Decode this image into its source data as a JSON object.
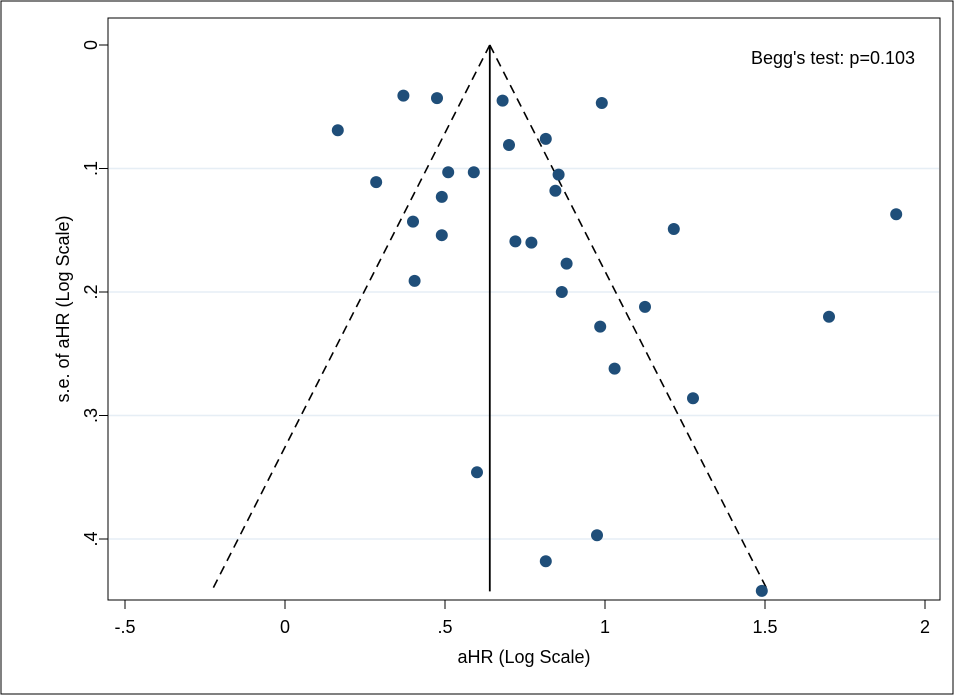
{
  "chart_data": {
    "type": "scatter",
    "title": "",
    "xlabel": "aHR (Log Scale)",
    "ylabel": "s.e. of aHR (Log Scale)",
    "xlim": [
      -0.5,
      2.0
    ],
    "ylim": [
      0,
      0.45
    ],
    "y_inverted": true,
    "grid": "horizontal",
    "x_ticks": [
      {
        "value": -0.5,
        "label": "-.5"
      },
      {
        "value": 0,
        "label": "0"
      },
      {
        "value": 0.5,
        "label": ".5"
      },
      {
        "value": 1,
        "label": "1"
      },
      {
        "value": 1.5,
        "label": "1.5"
      },
      {
        "value": 2,
        "label": "2"
      }
    ],
    "y_ticks": [
      {
        "value": 0,
        "label": "0"
      },
      {
        "value": 0.1,
        "label": ".1"
      },
      {
        "value": 0.2,
        "label": ".2"
      },
      {
        "value": 0.3,
        "label": ".3"
      },
      {
        "value": 0.4,
        "label": ".4"
      }
    ],
    "annotation": "Begg's test: p=0.103",
    "pooled_estimate": 0.64,
    "funnel": {
      "apex": [
        0.64,
        0
      ],
      "left_base": [
        -0.225,
        0.44
      ],
      "right_base": [
        1.505,
        0.44
      ]
    },
    "points": [
      {
        "x": 0.165,
        "y": 0.069
      },
      {
        "x": 0.37,
        "y": 0.041
      },
      {
        "x": 0.475,
        "y": 0.043
      },
      {
        "x": 0.68,
        "y": 0.045
      },
      {
        "x": 0.99,
        "y": 0.047
      },
      {
        "x": 0.815,
        "y": 0.076
      },
      {
        "x": 0.7,
        "y": 0.081
      },
      {
        "x": 0.285,
        "y": 0.111
      },
      {
        "x": 0.51,
        "y": 0.103
      },
      {
        "x": 0.59,
        "y": 0.103
      },
      {
        "x": 0.855,
        "y": 0.105
      },
      {
        "x": 0.49,
        "y": 0.123
      },
      {
        "x": 0.845,
        "y": 0.118
      },
      {
        "x": 0.4,
        "y": 0.143
      },
      {
        "x": 0.49,
        "y": 0.154
      },
      {
        "x": 0.72,
        "y": 0.159
      },
      {
        "x": 0.77,
        "y": 0.16
      },
      {
        "x": 1.215,
        "y": 0.149
      },
      {
        "x": 1.91,
        "y": 0.137
      },
      {
        "x": 0.88,
        "y": 0.177
      },
      {
        "x": 0.405,
        "y": 0.191
      },
      {
        "x": 0.865,
        "y": 0.2
      },
      {
        "x": 1.125,
        "y": 0.212
      },
      {
        "x": 1.7,
        "y": 0.22
      },
      {
        "x": 0.985,
        "y": 0.228
      },
      {
        "x": 1.03,
        "y": 0.262
      },
      {
        "x": 1.275,
        "y": 0.286
      },
      {
        "x": 0.6,
        "y": 0.346
      },
      {
        "x": 0.975,
        "y": 0.397
      },
      {
        "x": 0.815,
        "y": 0.418
      },
      {
        "x": 1.49,
        "y": 0.442
      }
    ],
    "colors": {
      "marker": "#1f4e79",
      "grid": "#e6eef5",
      "line": "#000000"
    }
  }
}
